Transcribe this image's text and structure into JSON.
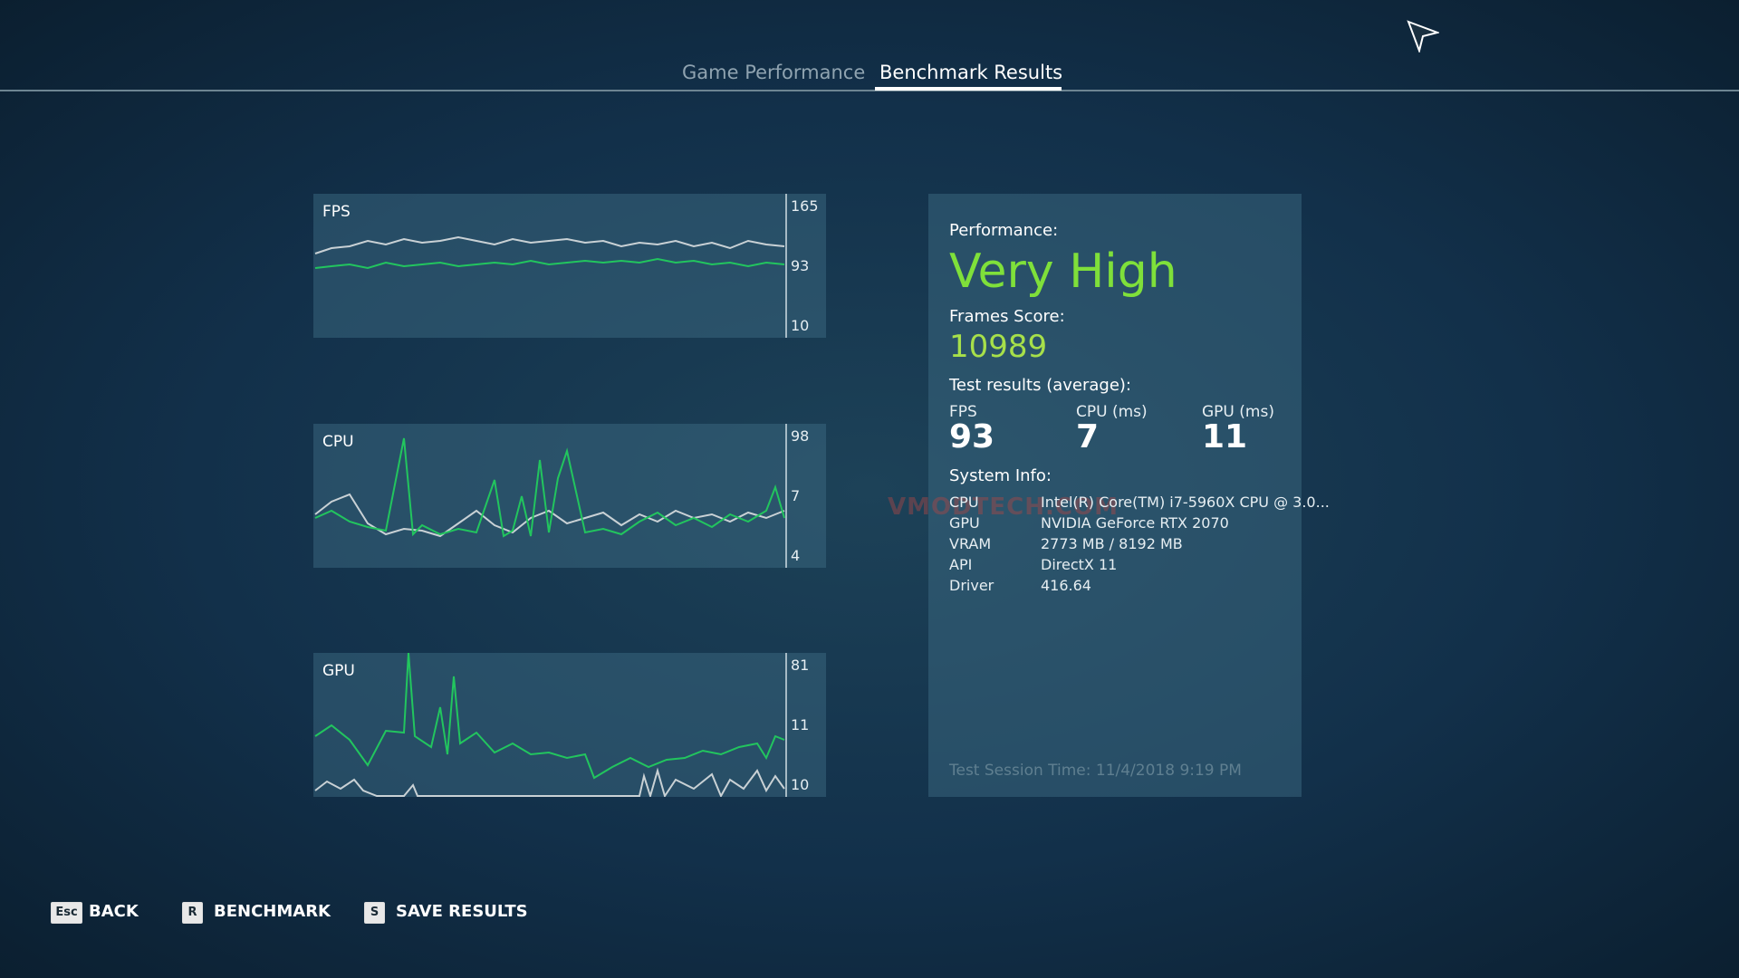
{
  "tabs": [
    "Game Performance",
    "Benchmark Results"
  ],
  "graphs": [
    {
      "title": "FPS",
      "labels": [
        165,
        93,
        10
      ]
    },
    {
      "title": "CPU",
      "labels": [
        98,
        7,
        4
      ]
    },
    {
      "title": "GPU",
      "labels": [
        81,
        11,
        10
      ]
    }
  ],
  "results": {
    "performance_label": "Performance:",
    "performance": "Very High",
    "score_label": "Frames Score:",
    "score": 10989,
    "averages_label": "Test results (average):",
    "averages": [
      {
        "name": "FPS",
        "value": 93
      },
      {
        "name": "CPU (ms)",
        "value": 7
      },
      {
        "name": "GPU (ms)",
        "value": 11
      }
    ],
    "system_label": "System Info:",
    "system": [
      [
        "CPU",
        "Intel(R) Core(TM) i7-5960X CPU @ 3.0..."
      ],
      [
        "GPU",
        "NVIDIA GeForce RTX 2070"
      ],
      [
        "VRAM",
        "2773 MB / 8192 MB"
      ],
      [
        "API",
        "DirectX 11"
      ],
      [
        "Driver",
        "416.64"
      ]
    ],
    "session": "Test Session Time: 11/4/2018 9:19 PM"
  },
  "watermark": "VMODTECH.COM",
  "footer": [
    {
      "key": "Esc",
      "label": "BACK"
    },
    {
      "key": "R",
      "label": "BENCHMARK"
    },
    {
      "key": "S",
      "label": "SAVE RESULTS"
    }
  ]
}
